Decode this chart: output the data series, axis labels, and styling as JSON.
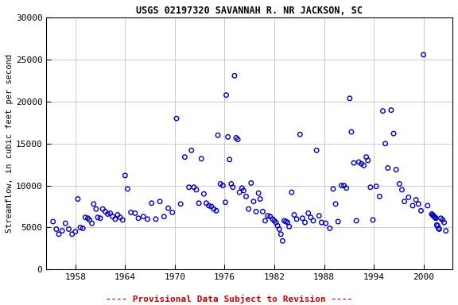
{
  "title": "USGS 02197320 SAVANNAH R. NR JACKSON, SC",
  "xlabel": "",
  "ylabel": "Streamflow, in cubic feet per second",
  "xlim": [
    1954.5,
    2003.5
  ],
  "ylim": [
    0,
    30000
  ],
  "xticks": [
    1958,
    1964,
    1970,
    1976,
    1982,
    1988,
    1994,
    2000
  ],
  "yticks": [
    0,
    5000,
    10000,
    15000,
    20000,
    25000,
    30000
  ],
  "marker_color": "#0000cc",
  "marker_size": 4,
  "marker_lw": 1.0,
  "footer_text": "---- Provisional Data Subject to Revision ----",
  "footer_color": "#cc0000",
  "x": [
    1955.3,
    1955.7,
    1956.0,
    1956.4,
    1956.8,
    1957.2,
    1957.6,
    1958.0,
    1958.3,
    1958.6,
    1958.9,
    1959.2,
    1959.5,
    1959.7,
    1960.0,
    1960.2,
    1960.5,
    1960.7,
    1961.0,
    1961.3,
    1961.6,
    1961.9,
    1962.2,
    1962.5,
    1962.8,
    1963.1,
    1963.4,
    1963.7,
    1964.0,
    1964.3,
    1964.7,
    1965.2,
    1965.6,
    1966.2,
    1966.7,
    1967.2,
    1967.7,
    1968.2,
    1968.7,
    1969.2,
    1969.7,
    1970.2,
    1970.7,
    1971.2,
    1971.7,
    1972.0,
    1972.3,
    1972.6,
    1972.9,
    1973.2,
    1973.5,
    1973.8,
    1974.1,
    1974.4,
    1974.7,
    1975.0,
    1975.2,
    1975.5,
    1975.8,
    1976.1,
    1976.2,
    1976.4,
    1976.6,
    1976.8,
    1977.0,
    1977.2,
    1977.4,
    1977.6,
    1977.8,
    1978.1,
    1978.3,
    1978.6,
    1978.9,
    1979.2,
    1979.5,
    1979.8,
    1980.1,
    1980.3,
    1980.6,
    1980.9,
    1981.2,
    1981.5,
    1981.8,
    1982.0,
    1982.2,
    1982.4,
    1982.6,
    1982.8,
    1983.0,
    1983.2,
    1983.4,
    1983.6,
    1983.8,
    1984.1,
    1984.4,
    1984.7,
    1985.1,
    1985.4,
    1985.7,
    1986.1,
    1986.4,
    1986.7,
    1987.1,
    1987.4,
    1987.7,
    1988.2,
    1988.7,
    1989.1,
    1989.4,
    1989.7,
    1990.1,
    1990.4,
    1990.7,
    1991.1,
    1991.3,
    1991.6,
    1991.9,
    1992.2,
    1992.5,
    1992.8,
    1993.1,
    1993.3,
    1993.6,
    1993.9,
    1994.3,
    1994.7,
    1995.1,
    1995.4,
    1995.7,
    1996.1,
    1996.4,
    1996.7,
    1997.1,
    1997.4,
    1997.7,
    1998.2,
    1998.7,
    1999.1,
    1999.4,
    1999.7,
    2000.0,
    2000.5,
    2001.0,
    2001.1,
    2001.2,
    2001.3,
    2001.4,
    2001.5,
    2001.6,
    2001.7,
    2001.8,
    2001.9,
    2002.1,
    2002.3,
    2002.5,
    2002.7
  ],
  "y": [
    5700,
    4800,
    4200,
    4600,
    5500,
    4800,
    4200,
    4500,
    8400,
    5000,
    4900,
    6200,
    6100,
    5900,
    5500,
    7800,
    7200,
    6200,
    6100,
    7200,
    6900,
    6600,
    6700,
    6300,
    6000,
    6500,
    6200,
    5900,
    11200,
    9600,
    6800,
    6700,
    6100,
    6300,
    6000,
    7900,
    6000,
    8100,
    6300,
    7300,
    6800,
    18000,
    7800,
    13400,
    9800,
    14200,
    9800,
    9500,
    7900,
    13200,
    9000,
    7900,
    7600,
    7500,
    7200,
    7000,
    16000,
    10200,
    10000,
    8000,
    20800,
    15800,
    13100,
    10200,
    9800,
    23100,
    15700,
    15500,
    9200,
    9700,
    9400,
    8700,
    7200,
    10300,
    8100,
    6900,
    9100,
    8400,
    6900,
    5800,
    6400,
    6300,
    6000,
    5800,
    5600,
    5200,
    4800,
    4200,
    3400,
    5800,
    5700,
    5600,
    5100,
    9200,
    6500,
    6000,
    16100,
    6100,
    5600,
    6700,
    6200,
    5800,
    14200,
    6400,
    5600,
    5500,
    4900,
    9600,
    7800,
    5700,
    10000,
    10000,
    9700,
    20400,
    16400,
    12700,
    5800,
    12800,
    12600,
    12400,
    13400,
    13000,
    9800,
    5900,
    9900,
    8700,
    18900,
    15000,
    12100,
    19000,
    16200,
    11900,
    10200,
    9500,
    8100,
    8600,
    7600,
    8300,
    7800,
    7000,
    25600,
    7600,
    6600,
    6500,
    6400,
    6300,
    6200,
    6100,
    5300,
    5200,
    4900,
    4800,
    6100,
    5900,
    5600,
    4600
  ]
}
